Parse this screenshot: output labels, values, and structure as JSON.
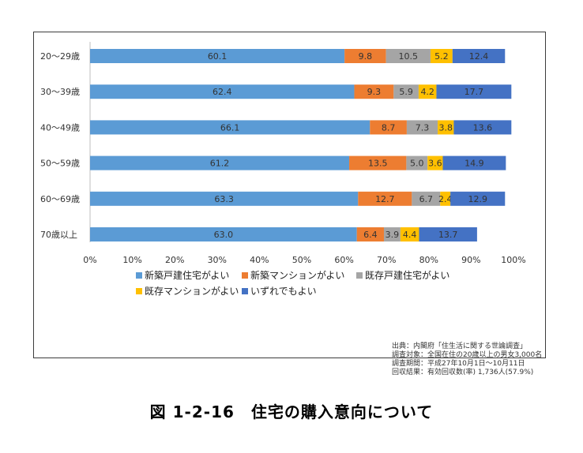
{
  "chart_data": {
    "type": "bar",
    "orientation": "horizontal",
    "stacked": true,
    "categories": [
      "20〜29歳",
      "30〜39歳",
      "40〜49歳",
      "50〜59歳",
      "60〜69歳",
      "70歳以上"
    ],
    "series": [
      {
        "name": "新築戸建住宅がよい",
        "color": "#5b9bd5",
        "values": [
          60.1,
          62.4,
          66.1,
          61.2,
          63.3,
          63.0
        ]
      },
      {
        "name": "新築マンションがよい",
        "color": "#ed7d31",
        "values": [
          9.8,
          9.3,
          8.7,
          13.5,
          12.7,
          6.4
        ]
      },
      {
        "name": "既存戸建住宅がよい",
        "color": "#a5a5a5",
        "values": [
          10.5,
          5.9,
          7.3,
          5.0,
          6.7,
          3.9
        ]
      },
      {
        "name": "既存マンションがよい",
        "color": "#ffc000",
        "values": [
          5.2,
          4.2,
          3.8,
          3.6,
          2.4,
          4.4
        ]
      },
      {
        "name": "いずれでもよい",
        "color": "#4472c4",
        "values": [
          12.4,
          17.7,
          13.6,
          14.9,
          12.9,
          13.7
        ]
      }
    ],
    "value_labels": [
      [
        "60.1",
        "9.8",
        "10.5",
        "5.2",
        "12.4"
      ],
      [
        "62.4",
        "9.3",
        "5.9",
        "4.2",
        "17.7"
      ],
      [
        "66.1",
        "8.7",
        "7.3",
        "3.8",
        "13.6"
      ],
      [
        "61.2",
        "13.5",
        "5.0",
        "3.6",
        "14.9"
      ],
      [
        "63.3",
        "12.7",
        "6.7",
        "2.4",
        "12.9"
      ],
      [
        "63.0",
        "6.4",
        "3.9",
        "4.4",
        "13.7"
      ]
    ],
    "xlim": [
      0,
      100
    ],
    "x_ticks": [
      "0%",
      "10%",
      "20%",
      "30%",
      "40%",
      "50%",
      "60%",
      "70%",
      "80%",
      "90%",
      "100%"
    ],
    "legend_position": "bottom",
    "grid": false
  },
  "source_note": [
    "出典：内閣府「住生活に関する世論調査」",
    "調査対象：全国在住の20歳以上の男女3,000名",
    "調査期間：平成27年10月1日〜10月11日",
    "回収結果：有効回収数(率) 1,736人(57.9%)"
  ],
  "figure_caption": "図 1-2-16　住宅の購入意向について"
}
